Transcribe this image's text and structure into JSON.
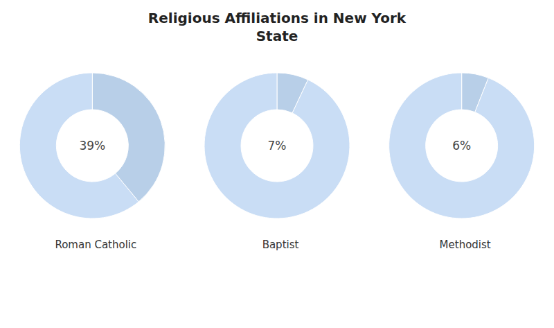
{
  "title": "Religious Affiliations in New York\nState",
  "chart_data": [
    {
      "type": "pie",
      "title": "Roman Catholic",
      "values": [
        39,
        61
      ],
      "value_labels": [
        "39%",
        null
      ],
      "colors": [
        "#b8cfe8",
        "#c9ddf5"
      ]
    },
    {
      "type": "pie",
      "title": "Baptist",
      "values": [
        7,
        93
      ],
      "value_labels": [
        "7%",
        null
      ],
      "colors": [
        "#b8cfe8",
        "#c9ddf5"
      ]
    },
    {
      "type": "pie",
      "title": "Methodist",
      "values": [
        6,
        94
      ],
      "value_labels": [
        "6%",
        null
      ],
      "colors": [
        "#b8cfe8",
        "#c9ddf5"
      ]
    }
  ]
}
